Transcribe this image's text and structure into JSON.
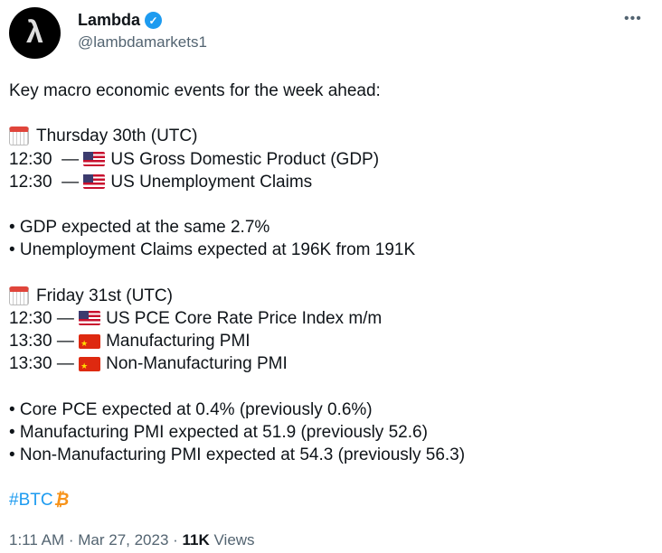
{
  "author": {
    "name": "Lambda",
    "handle": "@lambdamarkets1",
    "avatar_glyph": "λ",
    "verified": true
  },
  "intro": "Key macro economic events for the week ahead:",
  "days": [
    {
      "title": "Thursday 30th (UTC)",
      "events": [
        {
          "time": "12:30  — ",
          "flag": "us",
          "text": "US Gross Domestic Product (GDP)"
        },
        {
          "time": "12:30  — ",
          "flag": "us",
          "text": "US Unemployment Claims"
        }
      ],
      "notes": [
        "• GDP expected at the same 2.7%",
        "• Unemployment Claims expected at 196K from 191K"
      ]
    },
    {
      "title": "Friday 31st (UTC)",
      "events": [
        {
          "time": "12:30 — ",
          "flag": "us",
          "text": "US PCE Core Rate Price Index m/m"
        },
        {
          "time": "13:30 — ",
          "flag": "cn",
          "text": "Manufacturing PMI"
        },
        {
          "time": "13:30 — ",
          "flag": "cn",
          "text": "Non-Manufacturing PMI"
        }
      ],
      "notes": [
        "• Core PCE expected at 0.4% (previously 0.6%)",
        "• Manufacturing PMI expected at 51.9 (previously 52.6)",
        "• Non-Manufacturing PMI expected at 54.3 (previously 56.3)"
      ]
    }
  ],
  "hashtag": "#BTC",
  "btc_symbol": "₿",
  "footer": {
    "time": "1:11 AM",
    "date": "Mar 27, 2023",
    "views_count": "11K",
    "views_label": "Views",
    "sep": " · "
  },
  "colors": {
    "link": "#1d9bf0",
    "verified": "#1d9bf0",
    "btc": "#f7931a"
  }
}
